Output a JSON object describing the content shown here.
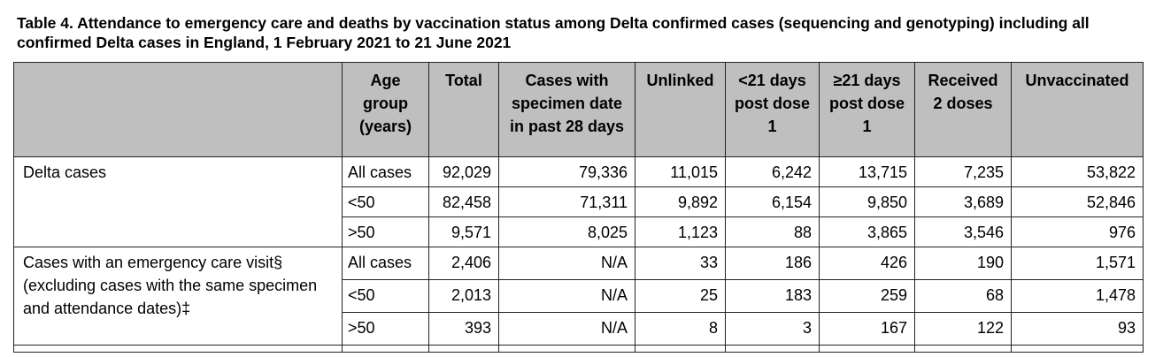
{
  "title": "Table 4. Attendance to emergency care and deaths by vaccination status among Delta confirmed cases (sequencing and genotyping) including all confirmed Delta cases in England, 1 February 2021 to 21 June 2021",
  "headers": [
    "",
    "Age group (years)",
    "Total",
    "Cases with specimen date in past 28 days",
    "Unlinked",
    "<21 days post dose 1",
    "≥21 days post dose 1",
    "Received 2 doses",
    "Unvaccinated"
  ],
  "groups": [
    {
      "label": "Delta cases",
      "rows": [
        {
          "age": "All cases",
          "values": [
            "92,029",
            "79,336",
            "11,015",
            "6,242",
            "13,715",
            "7,235",
            "53,822"
          ]
        },
        {
          "age": "<50",
          "values": [
            "82,458",
            "71,311",
            "9,892",
            "6,154",
            "9,850",
            "3,689",
            "52,846"
          ]
        },
        {
          "age": ">50",
          "values": [
            "9,571",
            "8,025",
            "1,123",
            "88",
            "3,865",
            "3,546",
            "976"
          ]
        }
      ]
    },
    {
      "label": "Cases with an emergency care visit§ (excluding cases with the same specimen and attendance dates)‡",
      "rows": [
        {
          "age": "All cases",
          "values": [
            "2,406",
            "N/A",
            "33",
            "186",
            "426",
            "190",
            "1,571"
          ]
        },
        {
          "age": "<50",
          "values": [
            "2,013",
            "N/A",
            "25",
            "183",
            "259",
            "68",
            "1,478"
          ]
        },
        {
          "age": ">50",
          "values": [
            "393",
            "N/A",
            "8",
            "3",
            "167",
            "122",
            "93"
          ]
        }
      ]
    }
  ]
}
